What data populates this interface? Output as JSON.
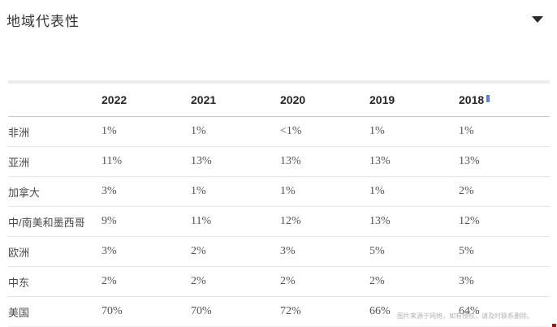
{
  "section": {
    "title": "地域代表性",
    "collapse_icon": "caret-down-icon"
  },
  "table": {
    "columns": [
      "",
      "2022",
      "2021",
      "2020",
      "2019",
      "2018"
    ],
    "rows": [
      {
        "label": "非洲",
        "values": [
          "1%",
          "1%",
          "<1%",
          "1%",
          "1%"
        ]
      },
      {
        "label": "亚洲",
        "values": [
          "11%",
          "13%",
          "13%",
          "13%",
          "13%"
        ]
      },
      {
        "label": "加拿大",
        "values": [
          "3%",
          "1%",
          "1%",
          "1%",
          "2%"
        ]
      },
      {
        "label": "中/南美和墨西哥",
        "values": [
          "9%",
          "11%",
          "12%",
          "13%",
          "12%"
        ]
      },
      {
        "label": "欧洲",
        "values": [
          "3%",
          "2%",
          "3%",
          "5%",
          "5%"
        ]
      },
      {
        "label": "中东",
        "values": [
          "2%",
          "2%",
          "2%",
          "2%",
          "3%"
        ]
      },
      {
        "label": "美国",
        "values": [
          "70%",
          "70%",
          "72%",
          "66%",
          "64%"
        ]
      }
    ]
  },
  "watermark": "图片来源于网络，如有侵权，请及时联系删除。",
  "colors": {
    "title_text": "#333333",
    "header_text": "#262626",
    "label_text": "#4a4a4a",
    "value_text": "#55535a",
    "row_divider": "#e4e4e4",
    "header_divider": "#c8c8c8",
    "table_band": "#ececec",
    "watermark_text": "#b2b2b2",
    "corner_mark": "#8b1d1d"
  }
}
